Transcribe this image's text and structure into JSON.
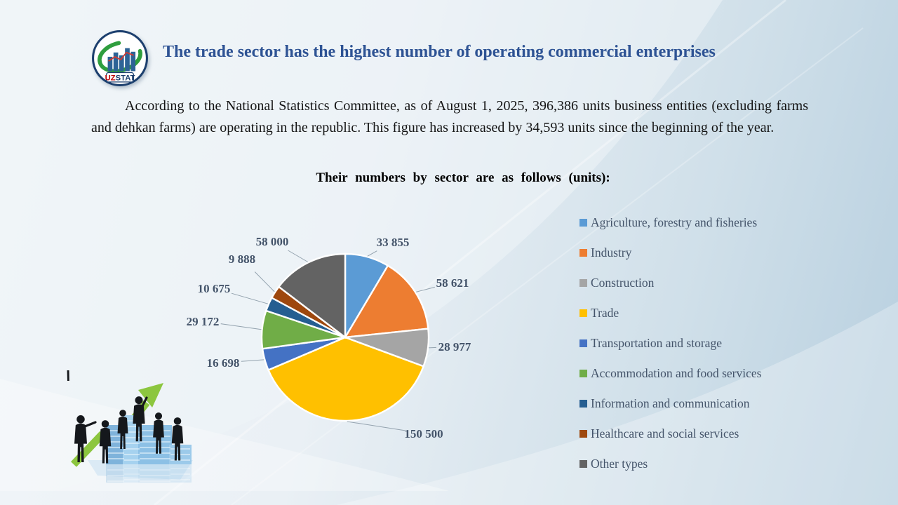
{
  "header": {
    "logo": {
      "text_primary": "UZ",
      "text_secondary": "STAT"
    },
    "title": "The trade sector has the highest number of operating commercial enterprises"
  },
  "body": {
    "paragraph": "According to the National Statistics Committee, as of August 1, 2025, 396,386 units business entities (excluding farms and dehkan farms) are operating in the republic. This figure has increased by 34,593 units since the beginning of the year."
  },
  "chart_data": {
    "type": "pie",
    "title": "Their numbers by sector are as follows (units):",
    "categories": [
      "Agriculture, forestry and fisheries",
      "Industry",
      "Construction",
      "Trade",
      "Transportation and storage",
      "Accommodation and food services",
      "Information and communication",
      "Healthcare and social services",
      "Other types"
    ],
    "values": [
      33855,
      58621,
      28977,
      150500,
      16698,
      29172,
      10675,
      9888,
      58000
    ],
    "value_labels": [
      "33 855",
      "58 621",
      "28 977",
      "150 500",
      "16 698",
      "29 172",
      "10 675",
      "9 888",
      "58 000"
    ],
    "colors": [
      "#5B9BD5",
      "#ED7D31",
      "#A5A5A5",
      "#FFC000",
      "#4472C4",
      "#70AD47",
      "#255E91",
      "#9E480E",
      "#636363"
    ],
    "total": 396386,
    "start_angle": "12-o'clock, clockwise",
    "legend_position": "right",
    "data_label_color": "#44546A"
  },
  "decor": {
    "logo_icon": "uzstat-bar-chart-swoosh-logo",
    "clipart": "business-people-silhouettes-growth-arrow-buildings"
  },
  "theme": {
    "title_color": "#2E5394",
    "background": "light-blue-diagonal-gradient"
  }
}
